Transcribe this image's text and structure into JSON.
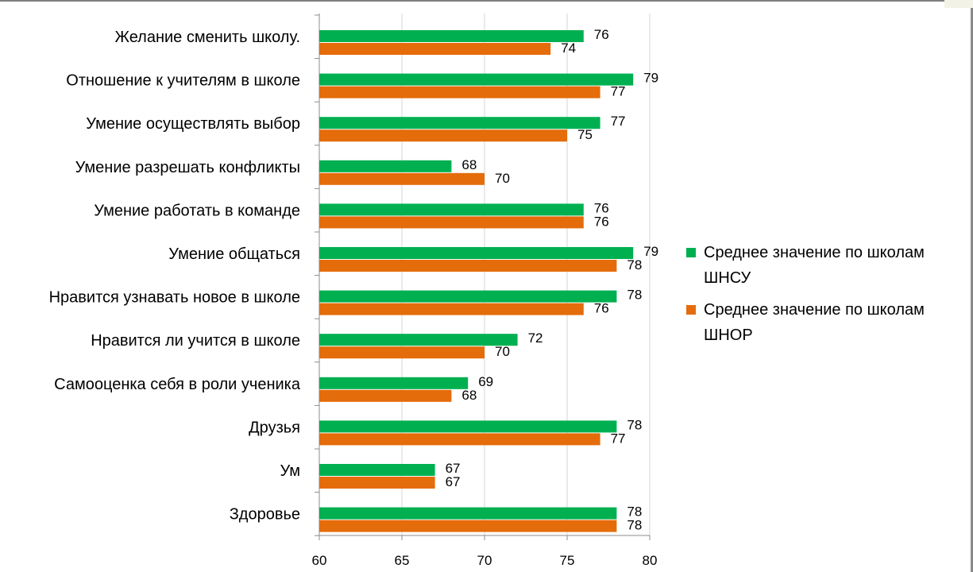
{
  "chart_data": {
    "type": "bar",
    "orientation": "horizontal",
    "categories": [
      "Желание сменить школу.",
      "Отношение к учителям в школе",
      "Умение осуществлять выбор",
      "Умение разрешать конфликты",
      "Умение работать в команде",
      "Умение общаться",
      "Нравится узнавать новое в школе",
      "Нравится ли учится в школе",
      "Самооценка себя в роли ученика",
      "Друзья",
      "Ум",
      "Здоровье"
    ],
    "series": [
      {
        "name": "Среднее значение по школам ШНСУ",
        "color": "#00b050",
        "values": [
          76,
          79,
          77,
          68,
          76,
          79,
          78,
          72,
          69,
          78,
          67,
          78
        ]
      },
      {
        "name": "Среднее значение по школам ШНОР",
        "color": "#e46c0a",
        "values": [
          74,
          77,
          75,
          70,
          76,
          78,
          76,
          70,
          68,
          77,
          67,
          78
        ]
      }
    ],
    "xlim": [
      60,
      80
    ],
    "xticks": [
      "60",
      "65",
      "70",
      "75",
      "80"
    ],
    "grid": "vertical",
    "legend_position": "right",
    "data_labels": true
  }
}
